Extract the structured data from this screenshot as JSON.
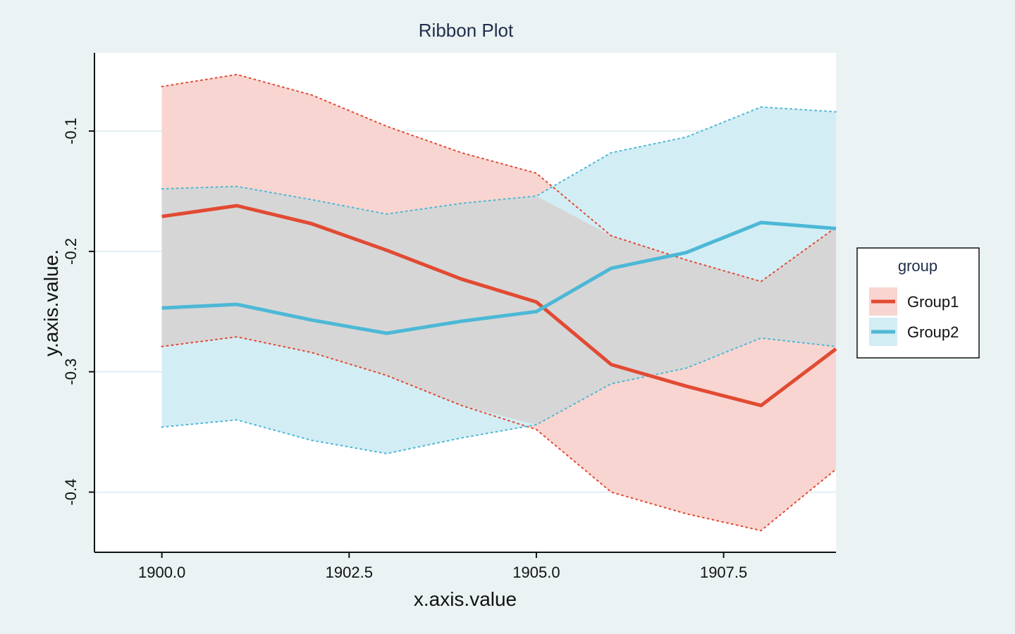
{
  "chart_data": {
    "type": "line",
    "title": "Ribbon Plot",
    "xlabel": "x.axis.value",
    "ylabel": "y.axis.value.",
    "xlim": [
      1899.1,
      1909.0
    ],
    "ylim": [
      -0.45,
      -0.035
    ],
    "x_ticks": [
      1900.0,
      1902.5,
      1905.0,
      1907.5
    ],
    "x_tick_labels": [
      "1900.0",
      "1902.5",
      "1905.0",
      "1907.5"
    ],
    "y_ticks": [
      -0.1,
      -0.2,
      -0.3,
      -0.4
    ],
    "y_tick_labels": [
      "-0.1",
      "-0.2",
      "-0.3",
      "-0.4"
    ],
    "grid": true,
    "legend_position": "right",
    "legend_title": "group",
    "x": [
      1900,
      1901,
      1902,
      1903,
      1904,
      1905,
      1906,
      1907,
      1908,
      1909
    ],
    "series": [
      {
        "name": "Group1",
        "color": "#e24a33",
        "ribbon_color": "#f8d5d0",
        "values": [
          -0.171,
          -0.162,
          -0.177,
          -0.199,
          -0.223,
          -0.242,
          -0.294,
          -0.312,
          -0.328,
          -0.281
        ],
        "lower": [
          -0.279,
          -0.271,
          -0.284,
          -0.303,
          -0.328,
          -0.348,
          -0.4,
          -0.418,
          -0.432,
          -0.381
        ],
        "upper": [
          -0.063,
          -0.053,
          -0.07,
          -0.096,
          -0.118,
          -0.135,
          -0.187,
          -0.207,
          -0.225,
          -0.18
        ]
      },
      {
        "name": "Group2",
        "color": "#4cb8d6",
        "ribbon_color": "#d3edf4",
        "values": [
          -0.247,
          -0.244,
          -0.257,
          -0.268,
          -0.258,
          -0.25,
          -0.214,
          -0.201,
          -0.176,
          -0.181
        ],
        "lower": [
          -0.346,
          -0.34,
          -0.357,
          -0.368,
          -0.355,
          -0.344,
          -0.31,
          -0.297,
          -0.272,
          -0.279
        ],
        "upper": [
          -0.148,
          -0.146,
          -0.157,
          -0.169,
          -0.16,
          -0.154,
          -0.118,
          -0.105,
          -0.08,
          -0.084
        ]
      }
    ]
  },
  "colors": {
    "background": "#eaf2f3",
    "plot_background": "#ffffff",
    "overlap": "#d6d6d6"
  }
}
